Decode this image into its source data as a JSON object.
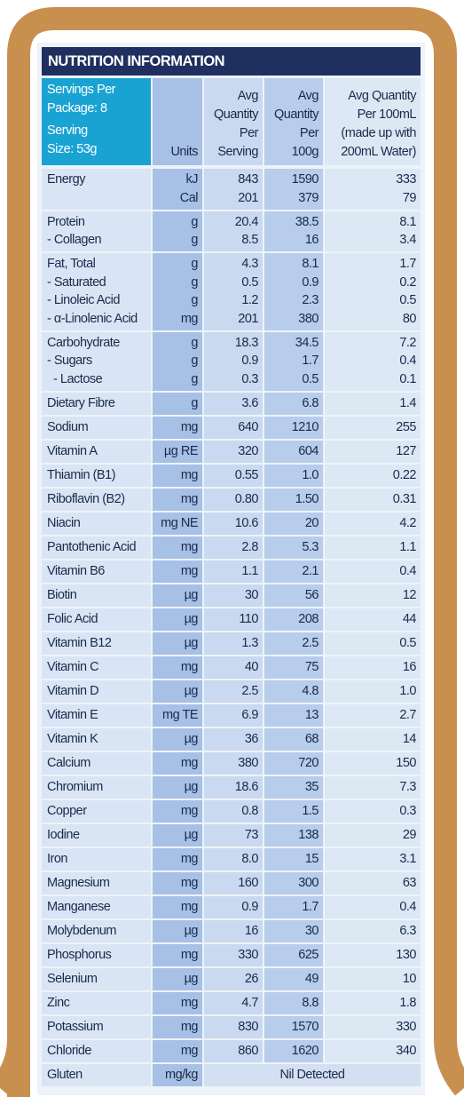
{
  "title": "NUTRITION INFORMATION",
  "header": {
    "servings": [
      "Servings Per",
      "Package: 8",
      "Serving",
      "Size: 53g"
    ],
    "units": "Units",
    "per_serving": [
      "Avg",
      "Quantity",
      "Per",
      "Serving"
    ],
    "per_100g": [
      "Avg",
      "Quantity",
      "Per",
      "100g"
    ],
    "per_100ml": [
      "Avg Quantity",
      "Per 100mL",
      "(made up with",
      "200mL Water)"
    ]
  },
  "rows": [
    {
      "lines": [
        [
          "Energy",
          "kJ",
          "843",
          "1590",
          "333"
        ],
        [
          null,
          "Cal",
          "201",
          "379",
          "79"
        ]
      ]
    },
    {
      "lines": [
        [
          "Protein",
          "g",
          "20.4",
          "38.5",
          "8.1"
        ],
        [
          "- Collagen",
          "g",
          "8.5",
          "16",
          "3.4"
        ]
      ]
    },
    {
      "lines": [
        [
          "Fat, Total",
          "g",
          "4.3",
          "8.1",
          "1.7"
        ],
        [
          "- Saturated",
          "g",
          "0.5",
          "0.9",
          "0.2"
        ],
        [
          "- Linoleic Acid",
          "g",
          "1.2",
          "2.3",
          "0.5"
        ],
        [
          "- α-Linolenic Acid",
          "mg",
          "201",
          "380",
          "80"
        ]
      ]
    },
    {
      "lines": [
        [
          "Carbohydrate",
          "g",
          "18.3",
          "34.5",
          "7.2"
        ],
        [
          "- Sugars",
          "g",
          "0.9",
          "1.7",
          "0.4"
        ],
        [
          "  - Lactose",
          "g",
          "0.3",
          "0.5",
          "0.1"
        ]
      ]
    },
    {
      "lines": [
        [
          "Dietary Fibre",
          "g",
          "3.6",
          "6.8",
          "1.4"
        ]
      ]
    },
    {
      "lines": [
        [
          "Sodium",
          "mg",
          "640",
          "1210",
          "255"
        ]
      ]
    },
    {
      "lines": [
        [
          "Vitamin A",
          "µg RE",
          "320",
          "604",
          "127"
        ]
      ]
    },
    {
      "lines": [
        [
          "Thiamin (B1)",
          "mg",
          "0.55",
          "1.0",
          "0.22"
        ]
      ]
    },
    {
      "lines": [
        [
          "Riboflavin (B2)",
          "mg",
          "0.80",
          "1.50",
          "0.31"
        ]
      ]
    },
    {
      "lines": [
        [
          "Niacin",
          "mg NE",
          "10.6",
          "20",
          "4.2"
        ]
      ]
    },
    {
      "lines": [
        [
          "Pantothenic Acid",
          "mg",
          "2.8",
          "5.3",
          "1.1"
        ]
      ]
    },
    {
      "lines": [
        [
          "Vitamin B6",
          "mg",
          "1.1",
          "2.1",
          "0.4"
        ]
      ]
    },
    {
      "lines": [
        [
          "Biotin",
          "µg",
          "30",
          "56",
          "12"
        ]
      ]
    },
    {
      "lines": [
        [
          "Folic Acid",
          "µg",
          "110",
          "208",
          "44"
        ]
      ]
    },
    {
      "lines": [
        [
          "Vitamin B12",
          "µg",
          "1.3",
          "2.5",
          "0.5"
        ]
      ]
    },
    {
      "lines": [
        [
          "Vitamin C",
          "mg",
          "40",
          "75",
          "16"
        ]
      ]
    },
    {
      "lines": [
        [
          "Vitamin D",
          "µg",
          "2.5",
          "4.8",
          "1.0"
        ]
      ]
    },
    {
      "lines": [
        [
          "Vitamin E",
          "mg TE",
          "6.9",
          "13",
          "2.7"
        ]
      ]
    },
    {
      "lines": [
        [
          "Vitamin K",
          "µg",
          "36",
          "68",
          "14"
        ]
      ]
    },
    {
      "lines": [
        [
          "Calcium",
          "mg",
          "380",
          "720",
          "150"
        ]
      ]
    },
    {
      "lines": [
        [
          "Chromium",
          "µg",
          "18.6",
          "35",
          "7.3"
        ]
      ]
    },
    {
      "lines": [
        [
          "Copper",
          "mg",
          "0.8",
          "1.5",
          "0.3"
        ]
      ]
    },
    {
      "lines": [
        [
          "Iodine",
          "µg",
          "73",
          "138",
          "29"
        ]
      ]
    },
    {
      "lines": [
        [
          "Iron",
          "mg",
          "8.0",
          "15",
          "3.1"
        ]
      ]
    },
    {
      "lines": [
        [
          "Magnesium",
          "mg",
          "160",
          "300",
          "63"
        ]
      ]
    },
    {
      "lines": [
        [
          "Manganese",
          "mg",
          "0.9",
          "1.7",
          "0.4"
        ]
      ]
    },
    {
      "lines": [
        [
          "Molybdenum",
          "µg",
          "16",
          "30",
          "6.3"
        ]
      ]
    },
    {
      "lines": [
        [
          "Phosphorus",
          "mg",
          "330",
          "625",
          "130"
        ]
      ]
    },
    {
      "lines": [
        [
          "Selenium",
          "µg",
          "26",
          "49",
          "10"
        ]
      ]
    },
    {
      "lines": [
        [
          "Zinc",
          "mg",
          "4.7",
          "8.8",
          "1.8"
        ]
      ]
    },
    {
      "lines": [
        [
          "Potassium",
          "mg",
          "830",
          "1570",
          "330"
        ]
      ]
    },
    {
      "lines": [
        [
          "Chloride",
          "mg",
          "860",
          "1620",
          "340"
        ]
      ]
    },
    {
      "lines": [
        [
          "Gluten",
          "mg/kg"
        ]
      ],
      "span": "Nil Detected"
    }
  ]
}
